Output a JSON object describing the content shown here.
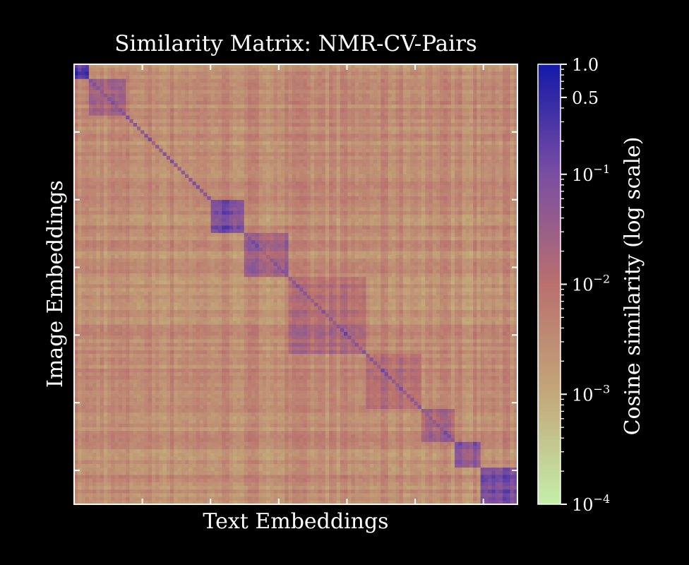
{
  "chart_data": {
    "type": "heatmap",
    "title": "Similarity Matrix: NMR-CV-Pairs",
    "xlabel": "Text Embeddings",
    "ylabel": "Image Embeddings",
    "colorbar": {
      "label": "Cosine similarity (log scale)",
      "scale": "log",
      "range": [
        0.0001,
        1.0
      ],
      "ticks": [
        {
          "value": 1.0,
          "label": "1.0",
          "base": "",
          "exp": ""
        },
        {
          "value": 0.5,
          "label": "0.5",
          "base": "",
          "exp": ""
        },
        {
          "value": 0.1,
          "label": "",
          "base": "10",
          "exp": "−1"
        },
        {
          "value": 0.01,
          "label": "",
          "base": "10",
          "exp": "−2"
        },
        {
          "value": 0.001,
          "label": "",
          "base": "10",
          "exp": "−3"
        },
        {
          "value": 0.0001,
          "label": "",
          "base": "10",
          "exp": "−4"
        }
      ],
      "colormap": [
        "#c4eeab",
        "#c3a879",
        "#b9706e",
        "#7a4ea2",
        "#1419a8"
      ]
    },
    "x_tick_count": 6,
    "y_tick_count": 6,
    "background_level": 0.003,
    "diagonal_level": 0.05,
    "blocks": [
      {
        "start": 0.0,
        "end": 0.03,
        "value": 0.3
      },
      {
        "start": 0.03,
        "end": 0.12,
        "value": 0.02
      },
      {
        "start": 0.305,
        "end": 0.385,
        "value": 0.1
      },
      {
        "start": 0.385,
        "end": 0.48,
        "value": 0.025
      },
      {
        "start": 0.48,
        "end": 0.66,
        "value": 0.012
      },
      {
        "start": 0.66,
        "end": 0.78,
        "value": 0.01
      },
      {
        "start": 0.78,
        "end": 0.86,
        "value": 0.02
      },
      {
        "start": 0.86,
        "end": 0.915,
        "value": 0.06
      },
      {
        "start": 0.915,
        "end": 1.0,
        "value": 0.1
      }
    ]
  }
}
